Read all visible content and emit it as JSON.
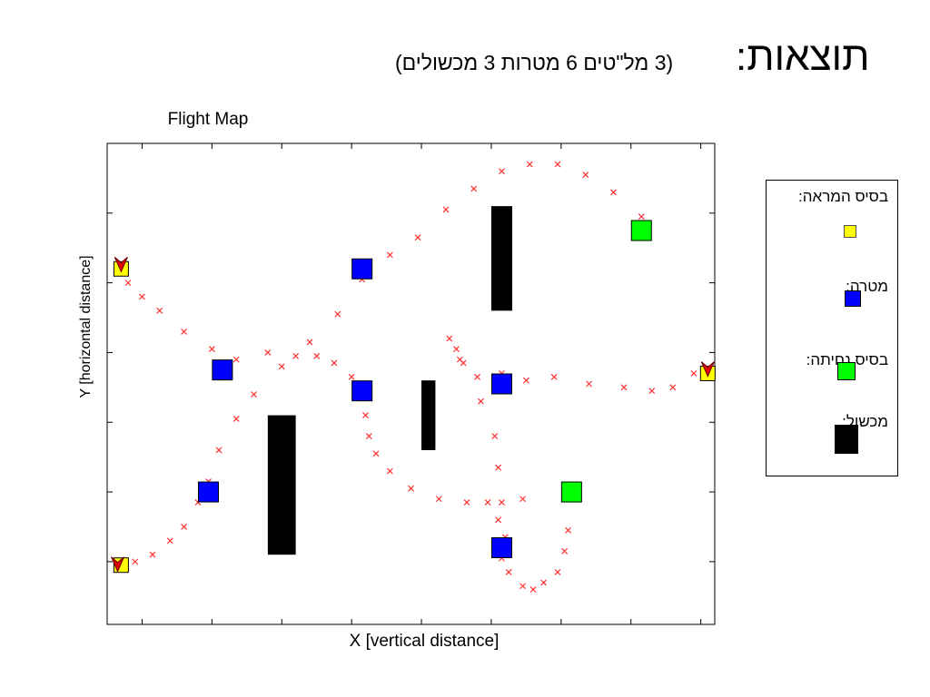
{
  "title": "תוצאות:",
  "subtitle": "(3 מל\"טים 6 מטרות 3 מכשולים)",
  "chart_data": {
    "type": "scatter",
    "title": "Flight Map",
    "xlabel": "X [vertical distance]",
    "ylabel": "Y [horizontal  distance]",
    "grid": false,
    "legend_placement": "right",
    "legend": [
      {
        "label": "בסיס המראה:",
        "color": "#ffff00",
        "marker": "square"
      },
      {
        "label": "מטרה:",
        "color": "#0000ff",
        "marker": "square"
      },
      {
        "label": "בסיס נחיתה:",
        "color": "#00ff00",
        "marker": "square"
      },
      {
        "label": "מכשול:",
        "color": "#000000",
        "marker": "rect"
      }
    ],
    "colors": {
      "launch_base": "#ffff00",
      "target": "#0000ff",
      "landing_base": "#00ff00",
      "obstacle": "#000000",
      "path": "#ff3030",
      "uav": "#e00000"
    },
    "launch_bases": [
      [
        0.2,
        5.1
      ],
      [
        0.2,
        0.85
      ],
      [
        8.6,
        3.6
      ]
    ],
    "targets": [
      [
        1.65,
        3.65
      ],
      [
        3.65,
        5.1
      ],
      [
        3.65,
        3.35
      ],
      [
        5.65,
        3.45
      ],
      [
        1.45,
        1.9
      ],
      [
        5.65,
        1.1
      ]
    ],
    "landing_bases": [
      [
        7.65,
        5.65
      ],
      [
        6.65,
        1.9
      ]
    ],
    "obstacles": [
      {
        "x0": 2.3,
        "x1": 2.7,
        "y0": 1.0,
        "y1": 3.0
      },
      {
        "x0": 4.5,
        "x1": 4.7,
        "y0": 2.5,
        "y1": 3.5
      },
      {
        "x0": 5.5,
        "x1": 5.8,
        "y0": 4.5,
        "y1": 6.0
      }
    ],
    "paths": [
      {
        "points": [
          [
            0.3,
            4.9
          ],
          [
            0.5,
            4.7
          ],
          [
            0.75,
            4.5
          ],
          [
            1.1,
            4.2
          ],
          [
            1.5,
            3.95
          ],
          [
            1.85,
            3.8
          ],
          [
            2.3,
            3.9
          ],
          [
            2.7,
            3.85
          ],
          [
            3.0,
            3.85
          ],
          [
            3.25,
            3.75
          ],
          [
            3.5,
            3.55
          ],
          [
            3.65,
            3.35
          ],
          [
            3.7,
            3.0
          ],
          [
            3.75,
            2.7
          ],
          [
            3.85,
            2.45
          ],
          [
            4.05,
            2.2
          ],
          [
            4.35,
            1.95
          ],
          [
            4.75,
            1.8
          ],
          [
            5.15,
            1.75
          ],
          [
            5.45,
            1.75
          ],
          [
            5.6,
            1.5
          ],
          [
            5.7,
            1.25
          ],
          [
            5.65,
            0.95
          ],
          [
            5.75,
            0.75
          ],
          [
            5.95,
            0.55
          ],
          [
            6.1,
            0.5
          ],
          [
            6.25,
            0.6
          ],
          [
            6.45,
            0.75
          ],
          [
            6.55,
            1.05
          ],
          [
            6.6,
            1.35
          ],
          [
            6.65,
            1.9
          ]
        ]
      },
      {
        "points": [
          [
            0.4,
            0.9
          ],
          [
            0.65,
            1.0
          ],
          [
            0.9,
            1.2
          ],
          [
            1.1,
            1.4
          ],
          [
            1.3,
            1.75
          ],
          [
            1.45,
            2.05
          ],
          [
            1.6,
            2.5
          ],
          [
            1.85,
            2.95
          ],
          [
            2.1,
            3.3
          ],
          [
            2.5,
            3.7
          ],
          [
            2.9,
            4.05
          ],
          [
            3.3,
            4.45
          ],
          [
            3.65,
            4.95
          ],
          [
            4.05,
            5.3
          ],
          [
            4.45,
            5.55
          ],
          [
            4.85,
            5.95
          ],
          [
            5.25,
            6.25
          ],
          [
            5.65,
            6.5
          ],
          [
            6.05,
            6.6
          ],
          [
            6.45,
            6.6
          ],
          [
            6.85,
            6.45
          ],
          [
            7.25,
            6.2
          ],
          [
            7.65,
            5.85
          ]
        ]
      },
      {
        "points": [
          [
            8.4,
            3.6
          ],
          [
            8.1,
            3.4
          ],
          [
            7.8,
            3.35
          ],
          [
            7.4,
            3.4
          ],
          [
            6.9,
            3.45
          ],
          [
            6.4,
            3.55
          ],
          [
            6.0,
            3.5
          ],
          [
            5.65,
            3.6
          ],
          [
            5.3,
            3.55
          ],
          [
            5.1,
            3.75
          ],
          [
            5.0,
            3.95
          ],
          [
            4.9,
            4.1
          ],
          [
            5.05,
            3.8
          ],
          [
            5.35,
            3.2
          ],
          [
            5.55,
            2.7
          ],
          [
            5.6,
            2.25
          ],
          [
            5.65,
            1.75
          ],
          [
            5.95,
            1.8
          ],
          [
            6.65,
            1.9
          ]
        ]
      }
    ],
    "uavs": [
      [
        0.2,
        5.15
      ],
      [
        0.15,
        0.85
      ],
      [
        8.6,
        3.65
      ]
    ]
  }
}
